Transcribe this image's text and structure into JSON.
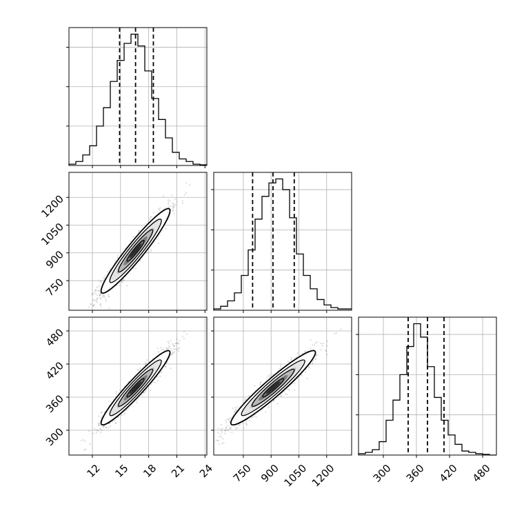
{
  "chart_data": {
    "type": "scatter",
    "title": "",
    "variables": [
      {
        "range": [
          9.5,
          24.2
        ],
        "ticks": [
          12,
          15,
          18,
          21,
          24
        ],
        "quantiles": [
          14.9,
          16.6,
          18.5
        ],
        "hist": [
          1,
          3,
          8,
          15,
          30,
          44,
          64,
          80,
          93,
          100,
          91,
          72,
          51,
          35,
          21,
          10,
          5,
          3,
          1,
          0.5
        ]
      },
      {
        "range": [
          590,
          1335
        ],
        "ticks": [
          750,
          900,
          1050,
          1200
        ],
        "quantiles": [
          800,
          910,
          1025
        ],
        "hist": [
          1,
          3,
          7,
          13,
          26,
          45,
          68,
          85,
          95,
          98,
          90,
          69,
          42,
          26,
          16,
          8,
          4,
          2,
          1,
          1
        ]
      },
      {
        "range": [
          255,
          505
        ],
        "ticks": [
          300,
          360,
          420,
          480
        ],
        "quantiles": [
          345,
          380,
          410
        ],
        "hist": [
          1,
          2,
          4,
          10,
          26,
          41,
          60,
          81,
          98,
          88,
          66,
          43,
          26,
          15,
          8,
          3,
          2,
          1,
          0.5,
          0
        ]
      }
    ],
    "pairs": [
      {
        "x_var": 0,
        "y_var": 1,
        "centre": [
          16.6,
          911
        ],
        "spread": [
          1.8,
          112
        ],
        "correlation": 0.95
      },
      {
        "x_var": 0,
        "y_var": 2,
        "centre": [
          16.6,
          377
        ],
        "spread": [
          1.8,
          33
        ],
        "correlation": 0.95
      },
      {
        "x_var": 1,
        "y_var": 2,
        "centre": [
          911,
          377
        ],
        "spread": [
          112,
          33
        ],
        "correlation": 0.95
      }
    ],
    "contour_levels": [
      0.5,
      1.0,
      1.5,
      2.0
    ],
    "colors": {
      "line": "#000000",
      "scatter": "#555555",
      "grid": "#b0b0b0",
      "fill": "#ffffff"
    }
  }
}
